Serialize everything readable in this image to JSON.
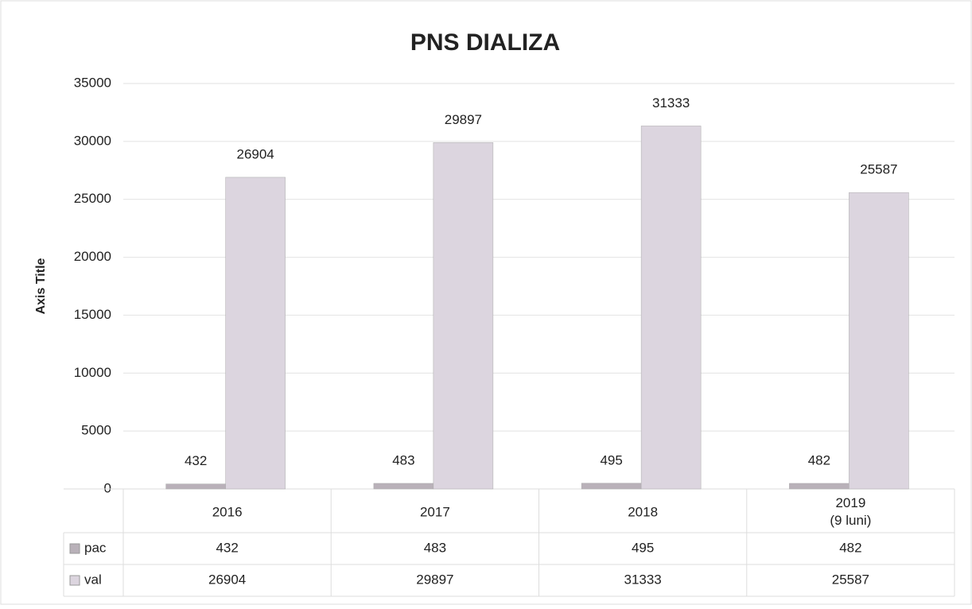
{
  "chart_data": {
    "type": "bar",
    "title": "PNS DIALIZA",
    "y_axis_label": "Axis Title",
    "categories": [
      "2016",
      "2017",
      "2018",
      "2019\n(9 luni)"
    ],
    "series": [
      {
        "name": "pac",
        "color": "#b9b1b9",
        "values": [
          432,
          483,
          495,
          482
        ]
      },
      {
        "name": "val",
        "color": "#dcd5df",
        "values": [
          26904,
          29897,
          31333,
          25587
        ]
      }
    ],
    "ylim": [
      0,
      35000
    ],
    "yticks": [
      0,
      5000,
      10000,
      15000,
      20000,
      25000,
      30000,
      35000
    ],
    "grid": true,
    "data_table": true
  }
}
